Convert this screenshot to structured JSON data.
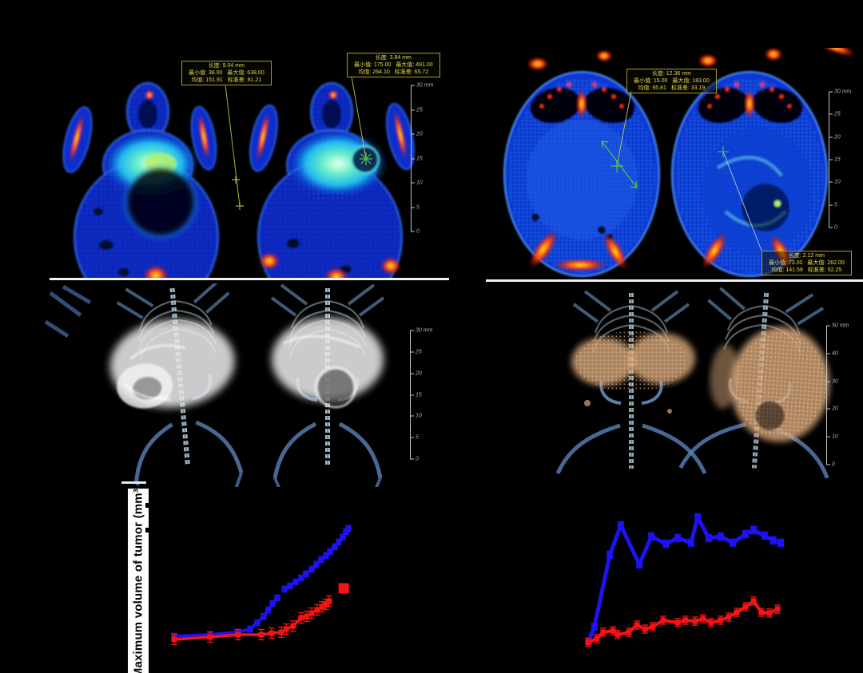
{
  "colors": {
    "background": "#000000",
    "annotation_border": "#a99a26",
    "annotation_text": "#e6d84f",
    "scalebar": "#c4c4c4",
    "divider": "#f2f2f2",
    "series_blue": "#1d12f2",
    "series_red": "#f51414",
    "ct_body_blue": "#0826be",
    "ct_tumor_cyan": "#6cf0c8",
    "hotspot_red": "#ff5010",
    "render_tumor_white": "#e8e8e8",
    "render_tumor_tan": "#d9a87c"
  },
  "labels": {
    "y_axis": "Maximum volume of tumor (mm³)"
  },
  "annotations": {
    "box1": {
      "line1": "长度: 9.04 mm",
      "line2a": "最小值: 38.00",
      "line2b": "最大值: 638.00",
      "line3a": "均值: 151.91",
      "line3b": "标准差: 81.21"
    },
    "box2": {
      "line1": "长度: 3.84 mm",
      "line2a": "最小值: 175.00",
      "line2b": "最大值: 491.00",
      "line3a": "均值: 264.10",
      "line3b": "标准差: 65.72"
    },
    "box3": {
      "line1": "长度: 12.36 mm",
      "line2a": "最小值: 15.00",
      "line2b": "最大值: 183.00",
      "line3a": "均值: 95.81",
      "line3b": "标准差: 33.19"
    },
    "box4": {
      "line1": "长度: 2.12 mm",
      "line2a": "最小值: 73.00",
      "line2b": "最大值: 262.00",
      "line3a": "均值: 141.59",
      "line3b": "标准差: 52.25"
    }
  },
  "scale_bars": {
    "ct_left": {
      "ticks": [
        "30 mm",
        "25",
        "20",
        "15",
        "10",
        "5",
        "0"
      ]
    },
    "ct_right": {
      "ticks": [
        "30 mm",
        "25",
        "20",
        "15",
        "10",
        "5",
        "0"
      ]
    },
    "render_left": {
      "ticks": [
        "30 mm",
        "25",
        "20",
        "15",
        "10",
        "5",
        "0"
      ]
    },
    "render_right": {
      "ticks": [
        "50 mm",
        "40",
        "30",
        "20",
        "10",
        "0"
      ]
    }
  },
  "chart_data": [
    {
      "id": "left",
      "type": "line",
      "title": "",
      "xlabel": "",
      "ylabel": "Maximum volume of tumor (mm³)",
      "axis_tick_labels_visible": false,
      "y_units": "percent of plot height (axis numbers not visible in source image)",
      "series": [
        {
          "name": "blue-series",
          "color": "#1d12f2",
          "marker": "circle",
          "marker_size": 8,
          "line_width": 4,
          "err": 1.6,
          "segments": [
            [
              [
                7.8,
                19.9
              ],
              [
                19.1,
                20.8
              ],
              [
                27.6,
                22.1
              ],
              [
                31.7,
                23.8
              ],
              [
                33.9,
                27.3
              ],
              [
                35.9,
                30.7
              ],
              [
                37.4,
                34.2
              ],
              [
                38.7,
                37.7
              ],
              [
                40.2,
                40.7
              ]
            ],
            [
              [
                42.5,
                45.5
              ],
              [
                44.2,
                47.2
              ],
              [
                46.0,
                49.4
              ],
              [
                47.7,
                51.5
              ],
              [
                49.2,
                53.7
              ],
              [
                51.0,
                56.3
              ],
              [
                52.5,
                58.9
              ],
              [
                54.0,
                61.5
              ],
              [
                55.5,
                63.6
              ],
              [
                56.8,
                65.8
              ],
              [
                58.3,
                68.4
              ],
              [
                59.5,
                71.0
              ],
              [
                60.8,
                73.6
              ],
              [
                61.8,
                76.6
              ],
              [
                62.6,
                78.4
              ]
            ]
          ]
        },
        {
          "name": "red-series",
          "color": "#f51414",
          "marker": "square",
          "marker_size": 7,
          "line_width": 3.5,
          "err": 2.8,
          "segments": [
            [
              [
                7.8,
                18.2
              ],
              [
                19.1,
                19.5
              ],
              [
                27.9,
                20.8
              ],
              [
                35.2,
                20.8
              ],
              [
                38.4,
                21.6
              ],
              [
                41.5,
                22.1
              ],
              [
                43.0,
                23.8
              ],
              [
                45.2,
                25.5
              ],
              [
                47.7,
                29.9
              ],
              [
                49.5,
                30.7
              ],
              [
                51.0,
                32.5
              ],
              [
                52.8,
                34.2
              ],
              [
                54.3,
                35.9
              ],
              [
                55.5,
                37.2
              ],
              [
                56.5,
                39.0
              ]
            ]
          ]
        },
        {
          "name": "red-detached-point",
          "color": "#f51414",
          "marker": "square",
          "marker_size": 13,
          "line_width": 0,
          "err": 2.4,
          "segments": [
            [
              [
                61.1,
                45.9
              ]
            ]
          ]
        }
      ]
    },
    {
      "id": "right",
      "type": "line",
      "title": "",
      "xlabel": "",
      "ylabel": "",
      "axis_tick_labels_visible": false,
      "y_units": "percent of plot height (axis numbers not visible in source image)",
      "series": [
        {
          "name": "blue-series",
          "color": "#1d12f2",
          "marker": "square",
          "marker_size": 8,
          "line_width": 5,
          "err": 2.0,
          "segments": [
            [
              [
                22.0,
                17.3
              ],
              [
                23.6,
                25.1
              ],
              [
                28.0,
                64.1
              ],
              [
                31.1,
                80.1
              ],
              [
                36.4,
                58.9
              ],
              [
                39.8,
                74.0
              ],
              [
                43.9,
                70.1
              ],
              [
                47.3,
                73.2
              ],
              [
                51.1,
                70.6
              ],
              [
                53.0,
                84.4
              ],
              [
                56.1,
                73.2
              ],
              [
                59.5,
                74.0
              ],
              [
                63.0,
                70.6
              ],
              [
                66.6,
                75.3
              ],
              [
                68.9,
                77.5
              ],
              [
                72.0,
                74.5
              ],
              [
                74.5,
                71.9
              ],
              [
                76.6,
                70.6
              ]
            ]
          ]
        },
        {
          "name": "red-series",
          "color": "#f51414",
          "marker": "square",
          "marker_size": 7,
          "line_width": 4,
          "err": 2.2,
          "segments": [
            [
              [
                21.8,
                16.5
              ],
              [
                24.3,
                18.6
              ],
              [
                26.1,
                22.1
              ],
              [
                28.9,
                22.9
              ],
              [
                30.2,
                20.8
              ],
              [
                33.4,
                22.1
              ],
              [
                35.7,
                26.0
              ],
              [
                38.0,
                23.8
              ],
              [
                40.2,
                25.1
              ],
              [
                43.2,
                28.6
              ],
              [
                47.3,
                27.3
              ],
              [
                49.5,
                28.6
              ],
              [
                52.3,
                28.1
              ],
              [
                54.5,
                29.4
              ],
              [
                56.8,
                27.3
              ],
              [
                59.5,
                28.6
              ],
              [
                61.8,
                30.3
              ],
              [
                64.1,
                32.9
              ],
              [
                66.6,
                35.9
              ],
              [
                68.9,
                39.0
              ],
              [
                71.1,
                32.9
              ],
              [
                73.4,
                32.5
              ],
              [
                75.7,
                34.6
              ]
            ]
          ]
        }
      ]
    }
  ]
}
